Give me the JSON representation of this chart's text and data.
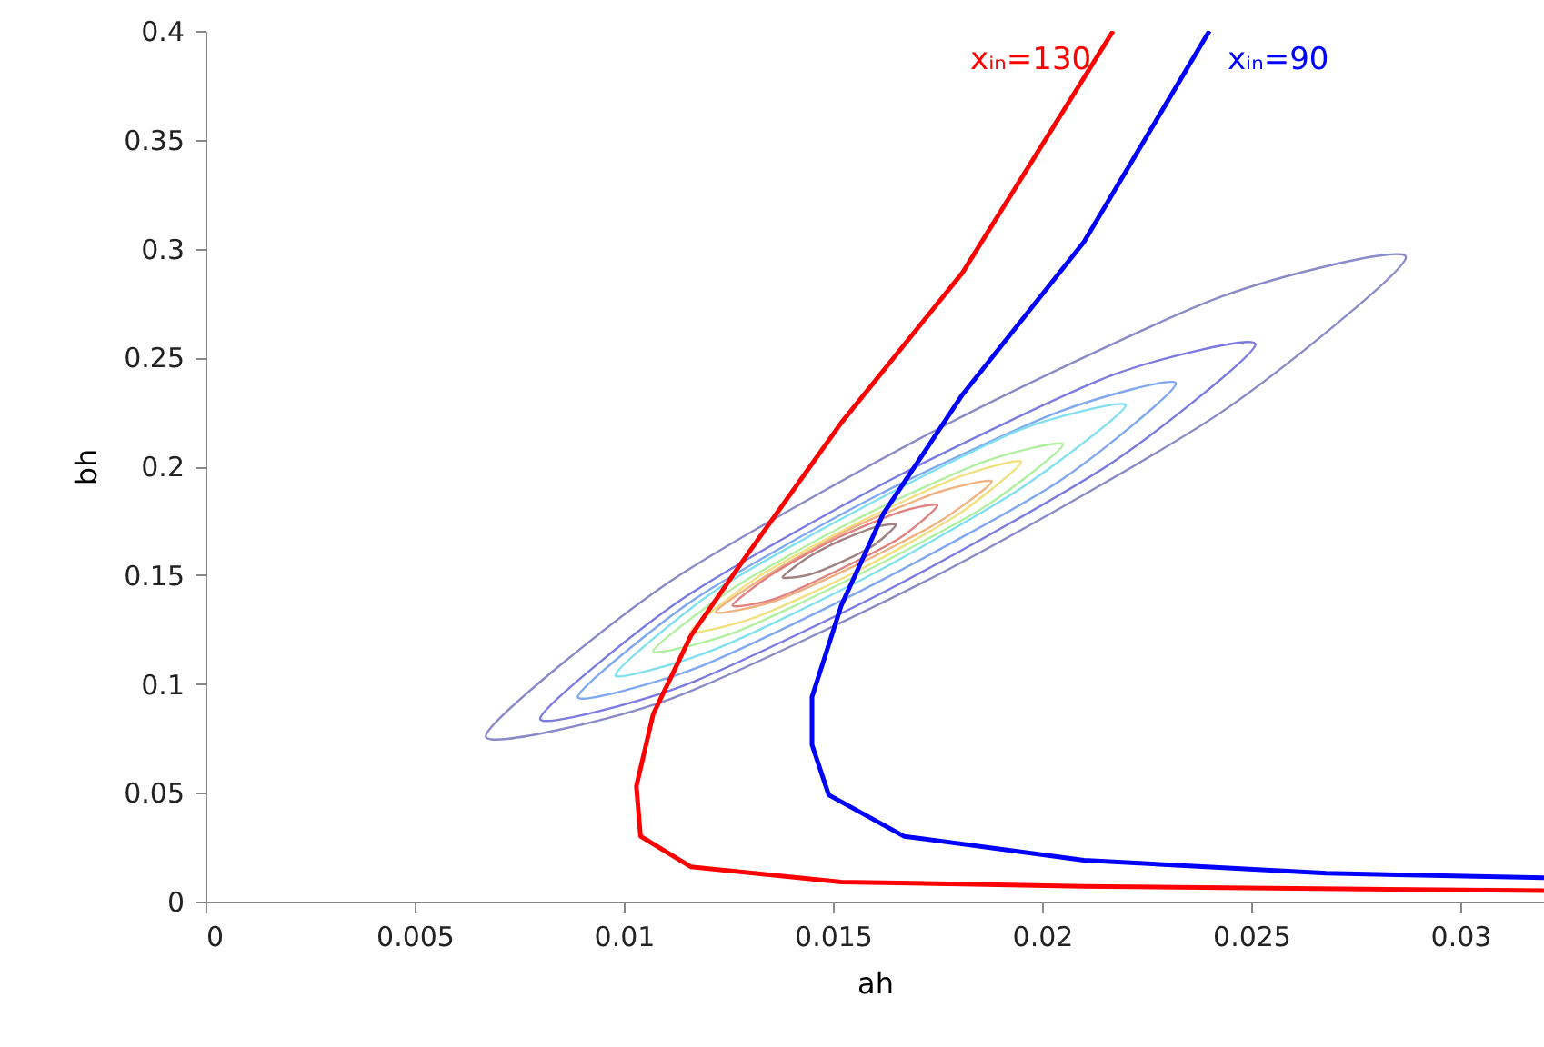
{
  "chart_data": {
    "type": "line",
    "xlabel": "ah",
    "ylabel": "bh",
    "xlim": [
      0,
      0.032
    ],
    "ylim": [
      0,
      0.4
    ],
    "xticks": [
      0,
      0.005,
      0.01,
      0.015,
      0.02,
      0.025,
      0.03
    ],
    "yticks": [
      0,
      0.05,
      0.1,
      0.15,
      0.2,
      0.25,
      0.3,
      0.35,
      0.4
    ],
    "grid": false,
    "series": [
      {
        "name": "xᵢₙ=130",
        "color": "#ff0000",
        "x": [
          0.0217,
          0.0181,
          0.0152,
          0.0129,
          0.0116,
          0.0107,
          0.0103,
          0.0104,
          0.0116,
          0.0152,
          0.021,
          0.032
        ],
        "values": [
          0.4,
          0.289,
          0.22,
          0.158,
          0.122,
          0.086,
          0.053,
          0.03,
          0.016,
          0.009,
          0.007,
          0.005
        ]
      },
      {
        "name": "xᵢₙ=90",
        "color": "#0000ff",
        "x": [
          0.024,
          0.021,
          0.0181,
          0.0162,
          0.0152,
          0.0145,
          0.0145,
          0.0149,
          0.0167,
          0.021,
          0.0268,
          0.032
        ],
        "values": [
          0.4,
          0.303,
          0.233,
          0.178,
          0.136,
          0.094,
          0.072,
          0.049,
          0.03,
          0.019,
          0.013,
          0.011
        ]
      }
    ]
  }
}
